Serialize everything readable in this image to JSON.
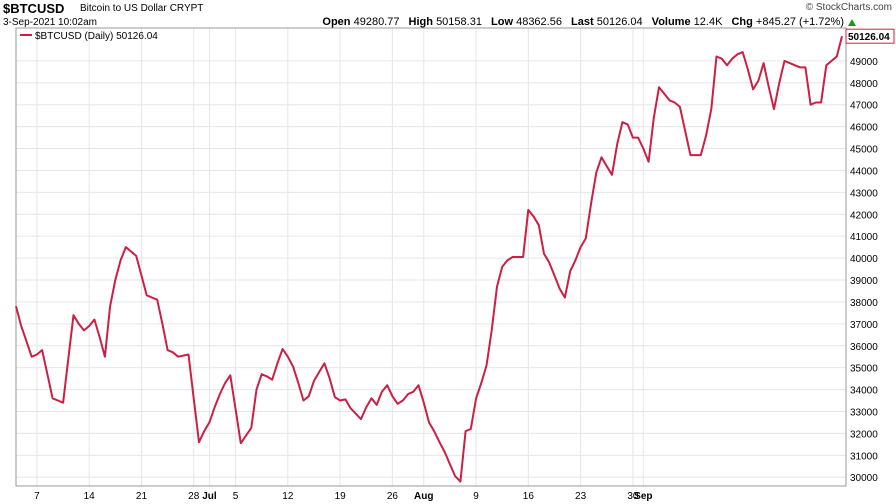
{
  "header": {
    "symbol": "$BTCUSD",
    "name": "Bitcoin to US Dollar",
    "exchange": "CRYPT",
    "date": "3-Sep-2021 10:02am",
    "brand": "© StockCharts.com",
    "open_label": "Open",
    "open": "49280.77",
    "high_label": "High",
    "high": "50158.31",
    "low_label": "Low",
    "low": "48362.56",
    "last_label": "Last",
    "last": "50126.04",
    "volume_label": "Volume",
    "volume": "12.4K",
    "chg_label": "Chg",
    "chg": "+845.27 (+1.72%)",
    "chg_color": "#1a9a1a"
  },
  "legend": {
    "text": "$BTCUSD (Daily) 50126.04",
    "color": "#cc1f44"
  },
  "last_label": "50126.04",
  "chart_data": {
    "type": "line",
    "title": "",
    "xlabel": "",
    "ylabel": "",
    "ylim": [
      29600,
      50500
    ],
    "grid": true,
    "legend_position": "top-left",
    "y_axis_side": "right",
    "y_ticks": [
      30000,
      31000,
      32000,
      33000,
      34000,
      35000,
      36000,
      37000,
      38000,
      39000,
      40000,
      41000,
      42000,
      43000,
      44000,
      45000,
      46000,
      47000,
      48000,
      49000
    ],
    "x_ticks": [
      {
        "label": "7",
        "index": 4,
        "bold": false
      },
      {
        "label": "14",
        "index": 14,
        "bold": false
      },
      {
        "label": "21",
        "index": 24,
        "bold": false
      },
      {
        "label": "28",
        "index": 34,
        "bold": false
      },
      {
        "label": "Jul",
        "index": 37,
        "bold": true
      },
      {
        "label": "5",
        "index": 42,
        "bold": false
      },
      {
        "label": "12",
        "index": 52,
        "bold": false
      },
      {
        "label": "19",
        "index": 62,
        "bold": false
      },
      {
        "label": "26",
        "index": 72,
        "bold": false
      },
      {
        "label": "Aug",
        "index": 78,
        "bold": true
      },
      {
        "label": "9",
        "index": 88,
        "bold": false
      },
      {
        "label": "16",
        "index": 98,
        "bold": false
      },
      {
        "label": "23",
        "index": 108,
        "bold": false
      },
      {
        "label": "30",
        "index": 118,
        "bold": false
      },
      {
        "label": "Sep",
        "index": 120,
        "bold": true
      }
    ],
    "series": [
      {
        "name": "$BTCUSD (Daily)",
        "color": "#cc1f44",
        "values": [
          37800,
          36900,
          36200,
          35500,
          35600,
          35800,
          34700,
          33600,
          33500,
          33400,
          35400,
          37400,
          37000,
          36700,
          36900,
          37200,
          36400,
          35500,
          37800,
          39000,
          39900,
          40500,
          40300,
          40100,
          39200,
          38300,
          38200,
          38100,
          37000,
          35800,
          35700,
          35500,
          35550,
          35600,
          33600,
          31600,
          32100,
          32500,
          33200,
          33800,
          34300,
          34650,
          33100,
          31550,
          31900,
          32250,
          34000,
          34700,
          34600,
          34450,
          35200,
          35850,
          35500,
          35050,
          34300,
          33500,
          33700,
          34400,
          34800,
          35200,
          34500,
          33650,
          33500,
          33550,
          33150,
          32900,
          32650,
          33200,
          33600,
          33300,
          33900,
          34200,
          33700,
          33350,
          33500,
          33800,
          33900,
          34200,
          33400,
          32500,
          32100,
          31600,
          31150,
          30600,
          30050,
          29800,
          32100,
          32200,
          33600,
          34300,
          35100,
          36700,
          38700,
          39600,
          39900,
          40050,
          40050,
          40050,
          42200,
          41900,
          41500,
          40200,
          39800,
          39200,
          38600,
          38200,
          39400,
          39900,
          40500,
          40900,
          42500,
          43900,
          44600,
          44200,
          43800,
          45200,
          46200,
          46100,
          45500,
          45500,
          45000,
          44400,
          46400,
          47800,
          47500,
          47200,
          47100,
          46900,
          45800,
          44700,
          44700,
          44700,
          45600,
          46800,
          49200,
          49100,
          48800,
          49100,
          49300,
          49400,
          48600,
          47700,
          48100,
          48900,
          47800,
          46800,
          48000,
          49000,
          48900,
          48800,
          48700,
          48700,
          47000,
          47100,
          47100,
          48800,
          49000,
          49200,
          50126
        ]
      }
    ]
  }
}
